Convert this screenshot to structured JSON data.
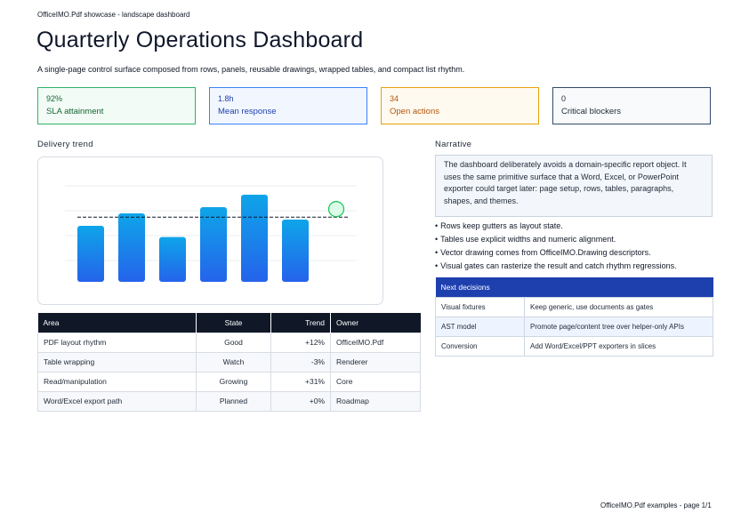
{
  "header": {
    "small": "OfficeIMO.Pdf showcase - landscape dashboard",
    "title": "Quarterly Operations Dashboard",
    "subtitle": "A single-page control surface composed from rows, panels, reusable drawings, wrapped tables, and compact list rhythm."
  },
  "kpis": [
    {
      "value": "92%",
      "label": "SLA attainment",
      "color": "#2fb36a"
    },
    {
      "value": "1.8h",
      "label": "Mean response",
      "color": "#3b82f6"
    },
    {
      "value": "34",
      "label": "Open actions",
      "color": "#e6a20a"
    },
    {
      "value": "0",
      "label": "Critical blockers",
      "color": "#334a6b"
    }
  ],
  "trend": {
    "heading": "Delivery trend",
    "bar_levels": [
      0.45,
      0.55,
      0.36,
      0.6,
      0.7,
      0.5
    ],
    "target_level": 0.52,
    "marker_level": 0.52,
    "bar_color_top": "#0ea5e9",
    "bar_color_bottom": "#2563eb",
    "marker_color": "#22c55e"
  },
  "area_table": {
    "headers": [
      "Area",
      "State",
      "Trend",
      "Owner"
    ],
    "rows": [
      [
        "PDF layout rhythm",
        "Good",
        "+12%",
        "OfficeIMO.Pdf"
      ],
      [
        "Table wrapping",
        "Watch",
        "-3%",
        "Renderer"
      ],
      [
        "Read/manipulation",
        "Growing",
        "+31%",
        "Core"
      ],
      [
        "Word/Excel export path",
        "Planned",
        "+0%",
        "Roadmap"
      ]
    ]
  },
  "narrative": {
    "heading": "Narrative",
    "text": "The dashboard deliberately avoids a domain-specific report object. It uses the same primitive surface that a Word, Excel, or PowerPoint exporter could target later: page setup, rows, tables, paragraphs, shapes, and themes.",
    "bullets": [
      "Rows keep gutters as layout state.",
      "Tables use explicit widths and numeric alignment.",
      "Vector drawing comes from OfficeIMO.Drawing descriptors.",
      "Visual gates can rasterize the result and catch rhythm regressions."
    ]
  },
  "decisions": {
    "heading": "Next decisions",
    "rows": [
      [
        "Visual fixtures",
        "Keep generic, use documents as gates"
      ],
      [
        "AST model",
        "Promote page/content tree over helper-only APIs"
      ],
      [
        "Conversion",
        "Add Word/Excel/PPT exporters in slices"
      ]
    ]
  },
  "footer": "OfficeIMO.Pdf examples - page 1/1"
}
